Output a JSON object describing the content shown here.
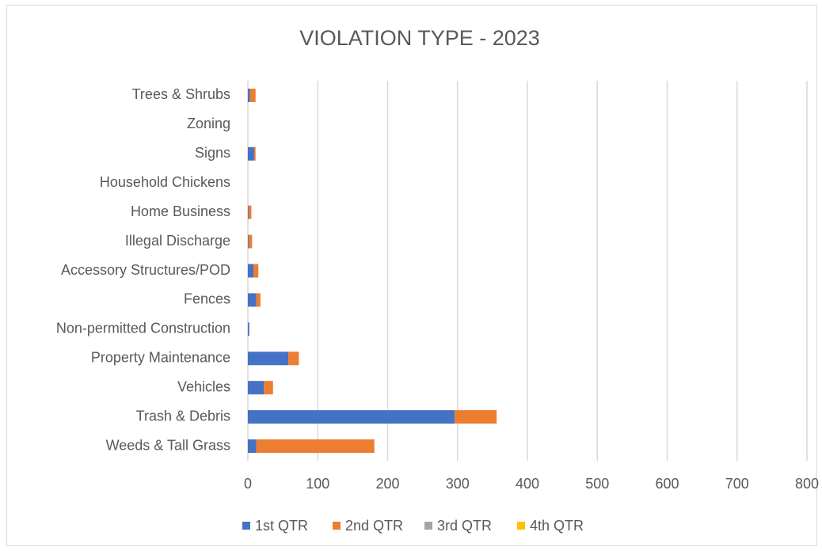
{
  "chart_data": {
    "type": "stacked_barh",
    "title": "VIOLATION TYPE - 2023",
    "categories": [
      "Trees & Shrubs",
      "Zoning",
      "Signs",
      "Household Chickens",
      "Home Business",
      "Illegal Discharge",
      "Accessory Structures/POD",
      "Fences",
      "Non-permitted Construction",
      "Property Maintenance",
      "Vehicles",
      "Trash & Debris",
      "Weeds & Tall Grass"
    ],
    "series": [
      {
        "name": "1st QTR",
        "color": "#4472c4",
        "values": [
          3,
          0,
          9,
          0,
          1,
          1,
          8,
          12,
          2,
          58,
          23,
          296,
          12
        ]
      },
      {
        "name": "2nd QTR",
        "color": "#ed7d31",
        "values": [
          8,
          0,
          2,
          0,
          4,
          5,
          7,
          6,
          0,
          15,
          13,
          60,
          169
        ]
      },
      {
        "name": "3rd QTR",
        "color": "#a5a5a5",
        "values": [
          0,
          0,
          0,
          0,
          0,
          0,
          0,
          0,
          0,
          0,
          0,
          0,
          0
        ]
      },
      {
        "name": "4th QTR",
        "color": "#ffc000",
        "values": [
          0,
          0,
          0,
          0,
          0,
          0,
          0,
          0,
          0,
          0,
          0,
          0,
          0
        ]
      }
    ],
    "xlim": [
      0,
      800
    ],
    "xticks": [
      0,
      100,
      200,
      300,
      400,
      500,
      600,
      700,
      800
    ],
    "grid": true,
    "legend": "bottom"
  }
}
